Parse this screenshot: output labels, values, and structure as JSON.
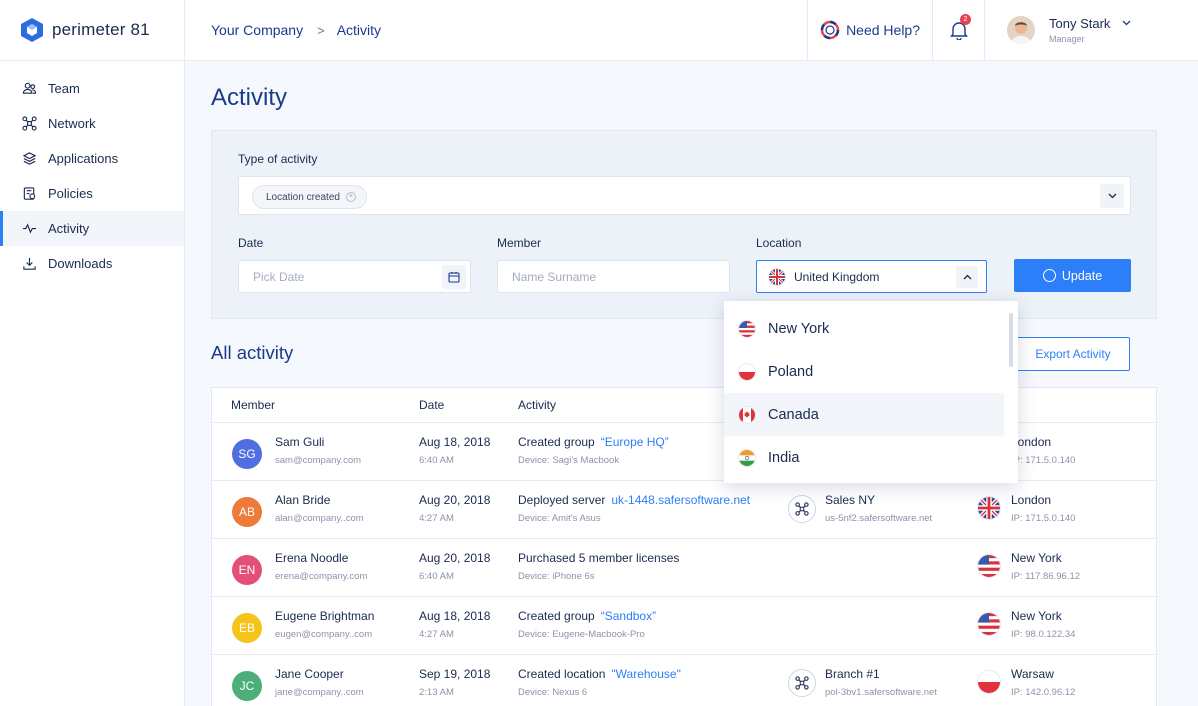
{
  "app": {
    "logo_text": "perimeter 81"
  },
  "sidebar": {
    "items": [
      {
        "label": "Team",
        "icon": "team-icon"
      },
      {
        "label": "Network",
        "icon": "network-icon"
      },
      {
        "label": "Applications",
        "icon": "applications-icon"
      },
      {
        "label": "Policies",
        "icon": "policies-icon"
      },
      {
        "label": "Activity",
        "icon": "activity-icon",
        "active": true
      },
      {
        "label": "Downloads",
        "icon": "downloads-icon"
      }
    ]
  },
  "topbar": {
    "breadcrumb": [
      "Your Company",
      "Activity"
    ],
    "help_label": "Need Help?",
    "notification_count": "2",
    "user_name": "Tony Stark",
    "user_role": "Manager"
  },
  "page": {
    "title": "Activity"
  },
  "filters": {
    "type_label": "Type of activity",
    "type_chip": "Location created",
    "date_label": "Date",
    "date_placeholder": "Pick Date",
    "member_label": "Member",
    "member_placeholder": "Name Surname",
    "location_label": "Location",
    "location_value": "United Kingdom",
    "update_label": "Update"
  },
  "location_dropdown": {
    "options": [
      "New York",
      "Poland",
      "Canada",
      "India"
    ],
    "hovered": "Canada"
  },
  "activity": {
    "section_title": "All activity",
    "export_label": "Export Activity",
    "columns": [
      "Member",
      "Date",
      "Activity"
    ],
    "rows": [
      {
        "initials": "SG",
        "color": "#4f6fe0",
        "name": "Sam Guli",
        "email": "sam@company.com",
        "date": "Aug 18, 2018",
        "time": "6:40 AM",
        "action": "Created group",
        "target": "“Europe HQ”",
        "device": "Device: Sagi's Macbook",
        "network": "",
        "network_host": "",
        "location": "London",
        "ip": "IP: 171.5.0.140",
        "flag": "uk"
      },
      {
        "initials": "AB",
        "color": "#f07a3a",
        "name": "Alan Bride",
        "email": "alan@company..com",
        "date": "Aug 20, 2018",
        "time": "4:27 AM",
        "action": "Deployed server",
        "target": "uk-1448.safersoftware.net",
        "device": "Device: Amit's Asus",
        "network": "Sales NY",
        "network_host": "us-5nf2.safersoftware.net",
        "location": "London",
        "ip": "IP: 171.5.0.140",
        "flag": "uk"
      },
      {
        "initials": "EN",
        "color": "#e2507a",
        "name": "Erena Noodle",
        "email": "erena@company.com",
        "date": "Aug 20, 2018",
        "time": "6:40 AM",
        "action": "Purchased 5 member licenses",
        "target": "",
        "device": "Device: iPhone 6s",
        "network": "",
        "network_host": "",
        "location": "New York",
        "ip": "IP: 117.86.96.12",
        "flag": "us"
      },
      {
        "initials": "EB",
        "color": "#f5c41b",
        "name": "Eugene Brightman",
        "email": "eugen@company..com",
        "date": "Aug 18, 2018",
        "time": "4:27 AM",
        "action": "Created group",
        "target": "“Sandbox”",
        "device": "Device: Eugene-Macbook-Pro",
        "network": "",
        "network_host": "",
        "location": "New York",
        "ip": "IP: 98.0.122.34",
        "flag": "us"
      },
      {
        "initials": "JC",
        "color": "#4caf7a",
        "name": "Jane Cooper",
        "email": "jane@company..com",
        "date": "Sep 19, 2018",
        "time": "2:13 AM",
        "action": "Created location",
        "target": "\"Warehouse\"",
        "device": "Device: Nexus 6",
        "network": "Branch #1",
        "network_host": "pol-3bv1.safersoftware.net",
        "location": "Warsaw",
        "ip": "IP: 142.0.96.12",
        "flag": "pl"
      }
    ]
  },
  "colors": {
    "accent": "#2d7ff9",
    "title": "#1b3a8c"
  }
}
